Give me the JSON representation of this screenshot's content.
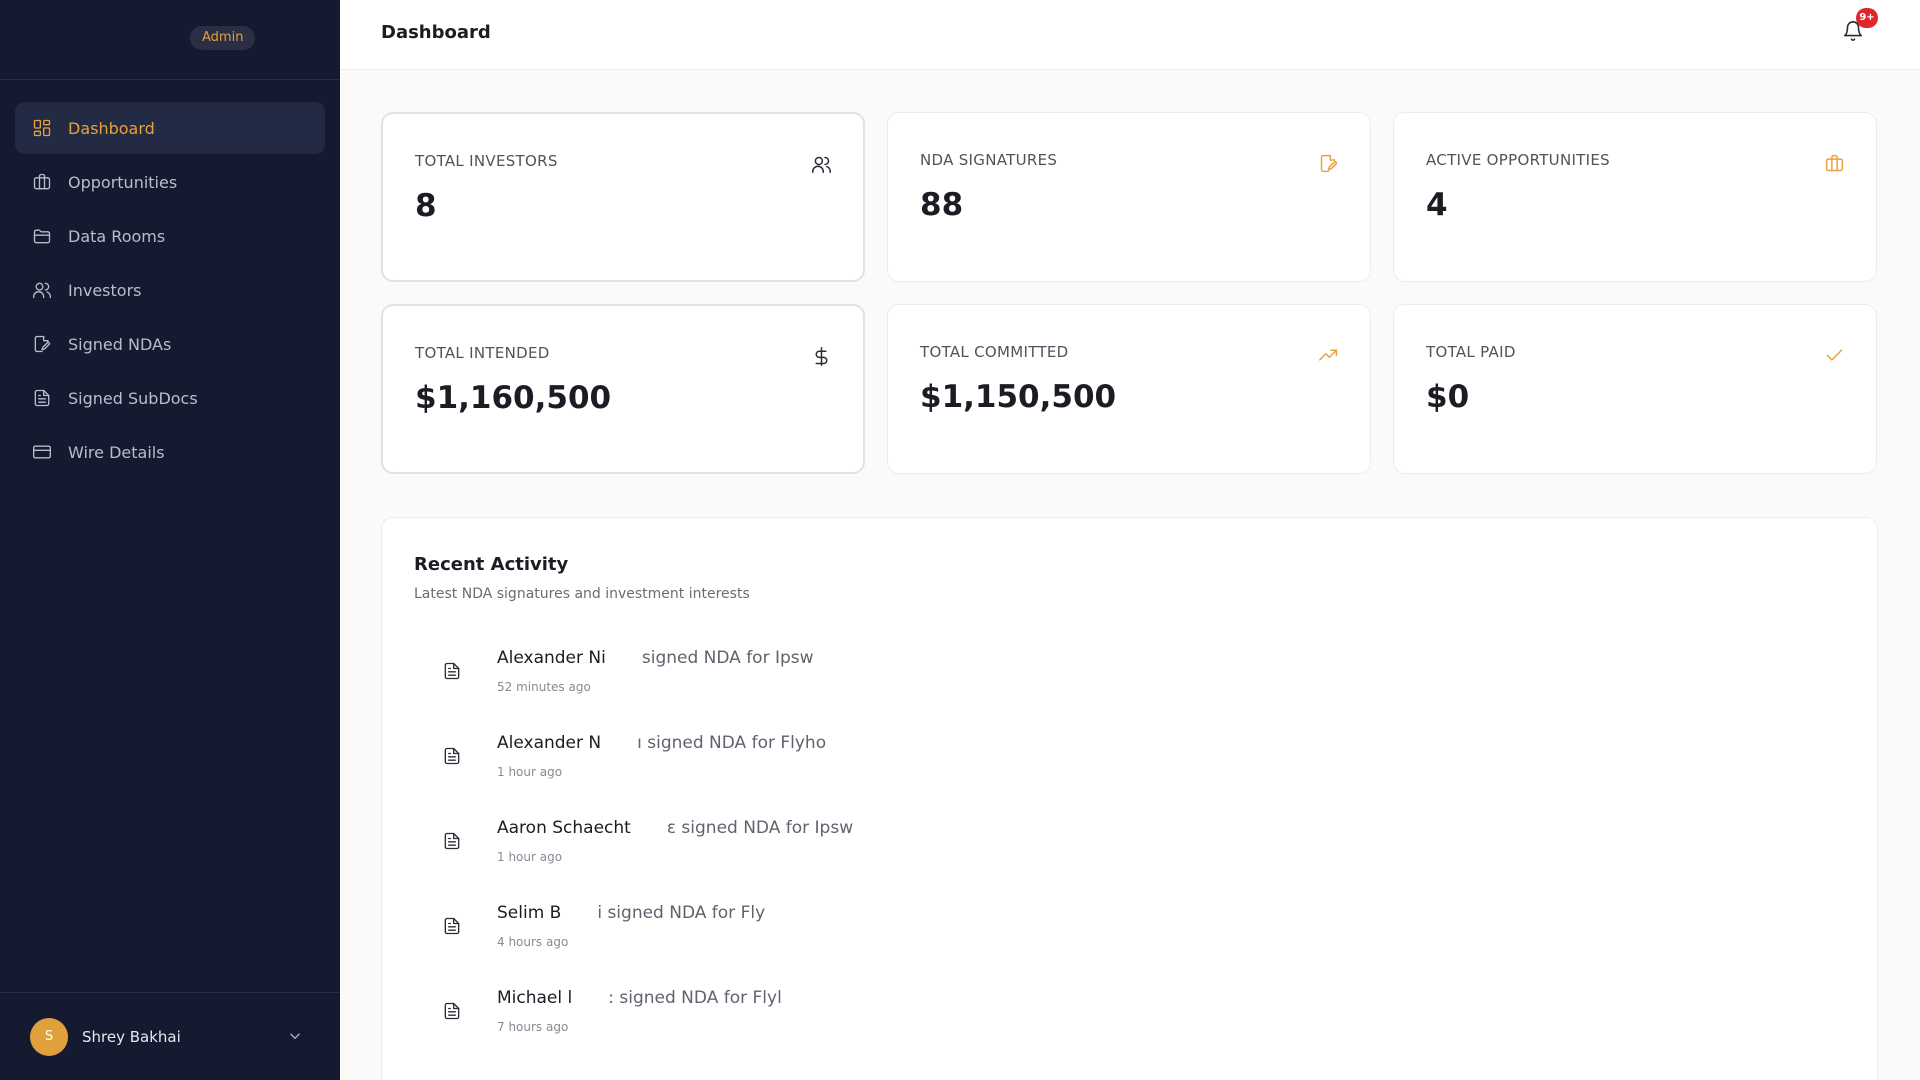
{
  "sidebar": {
    "badge": "Admin",
    "items": [
      {
        "label": "Dashboard",
        "icon": "dashboard-icon",
        "active": true
      },
      {
        "label": "Opportunities",
        "icon": "briefcase-icon"
      },
      {
        "label": "Data Rooms",
        "icon": "folder-icon"
      },
      {
        "label": "Investors",
        "icon": "users-icon"
      },
      {
        "label": "Signed NDAs",
        "icon": "file-signature-icon"
      },
      {
        "label": "Signed SubDocs",
        "icon": "file-text-icon"
      },
      {
        "label": "Wire Details",
        "icon": "credit-card-icon"
      }
    ],
    "user": {
      "initial": "S",
      "name": "Shrey Bakhai"
    }
  },
  "header": {
    "title": "Dashboard",
    "notification_count": "9+"
  },
  "stats": [
    {
      "label": "TOTAL INVESTORS",
      "value": "8",
      "icon": "users-icon"
    },
    {
      "label": "NDA SIGNATURES",
      "value": "88",
      "icon": "file-signature-icon"
    },
    {
      "label": "ACTIVE OPPORTUNITIES",
      "value": "4",
      "icon": "briefcase-icon"
    },
    {
      "label": "TOTAL INTENDED",
      "value": "$1,160,500",
      "icon": "dollar-icon"
    },
    {
      "label": "TOTAL COMMITTED",
      "value": "$1,150,500",
      "icon": "trending-up-icon"
    },
    {
      "label": "TOTAL PAID",
      "value": "$0",
      "icon": "check-icon"
    }
  ],
  "activity": {
    "title": "Recent Activity",
    "subtitle": "Latest NDA signatures and investment interests",
    "items": [
      {
        "name": "Alexander Ni",
        "action": "signed NDA for Ipsw",
        "time": "52 minutes ago"
      },
      {
        "name": "Alexander N",
        "action": "ı signed NDA for Flyho",
        "time": "1 hour ago"
      },
      {
        "name": "Aaron Schaecht",
        "action": "ɛ signed NDA for Ipsw",
        "time": "1 hour ago"
      },
      {
        "name": "Selim B",
        "action": "i signed NDA for Fly",
        "time": "4 hours ago"
      },
      {
        "name": "Michael l",
        "action": ": signed NDA for Flyl",
        "time": "7 hours ago"
      }
    ]
  },
  "colors": {
    "accent": "#e8a23b",
    "sidebar_bg": "#151a30",
    "badge_red": "#e0262b"
  }
}
